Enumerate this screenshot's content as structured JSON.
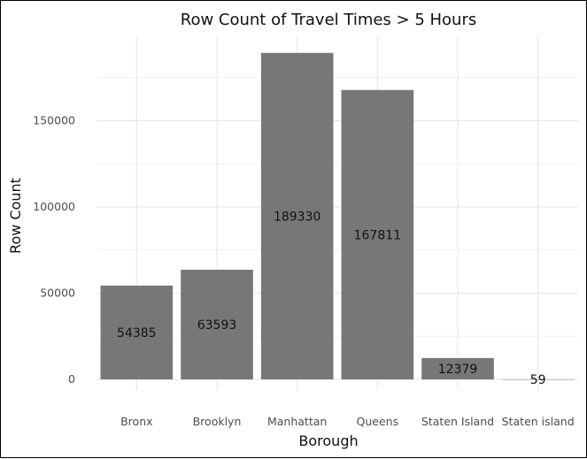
{
  "chart_data": {
    "type": "bar",
    "title": "Row Count of Travel Times > 5 Hours",
    "xlabel": "Borough",
    "ylabel": "Row Count",
    "categories": [
      "Bronx",
      "Brooklyn",
      "Manhattan",
      "Queens",
      "Staten Island",
      "Staten island"
    ],
    "values": [
      54385,
      63593,
      189330,
      167811,
      12379,
      59
    ],
    "data_labels": [
      "54385",
      "63593",
      "189330",
      "167811",
      "12379",
      "59"
    ],
    "yticks": [
      0,
      50000,
      100000,
      150000
    ],
    "ytick_labels": [
      "0",
      "50000",
      "100000",
      "150000"
    ],
    "ylim": [
      0,
      196000
    ],
    "grid": true,
    "bar_color": "#777777"
  }
}
